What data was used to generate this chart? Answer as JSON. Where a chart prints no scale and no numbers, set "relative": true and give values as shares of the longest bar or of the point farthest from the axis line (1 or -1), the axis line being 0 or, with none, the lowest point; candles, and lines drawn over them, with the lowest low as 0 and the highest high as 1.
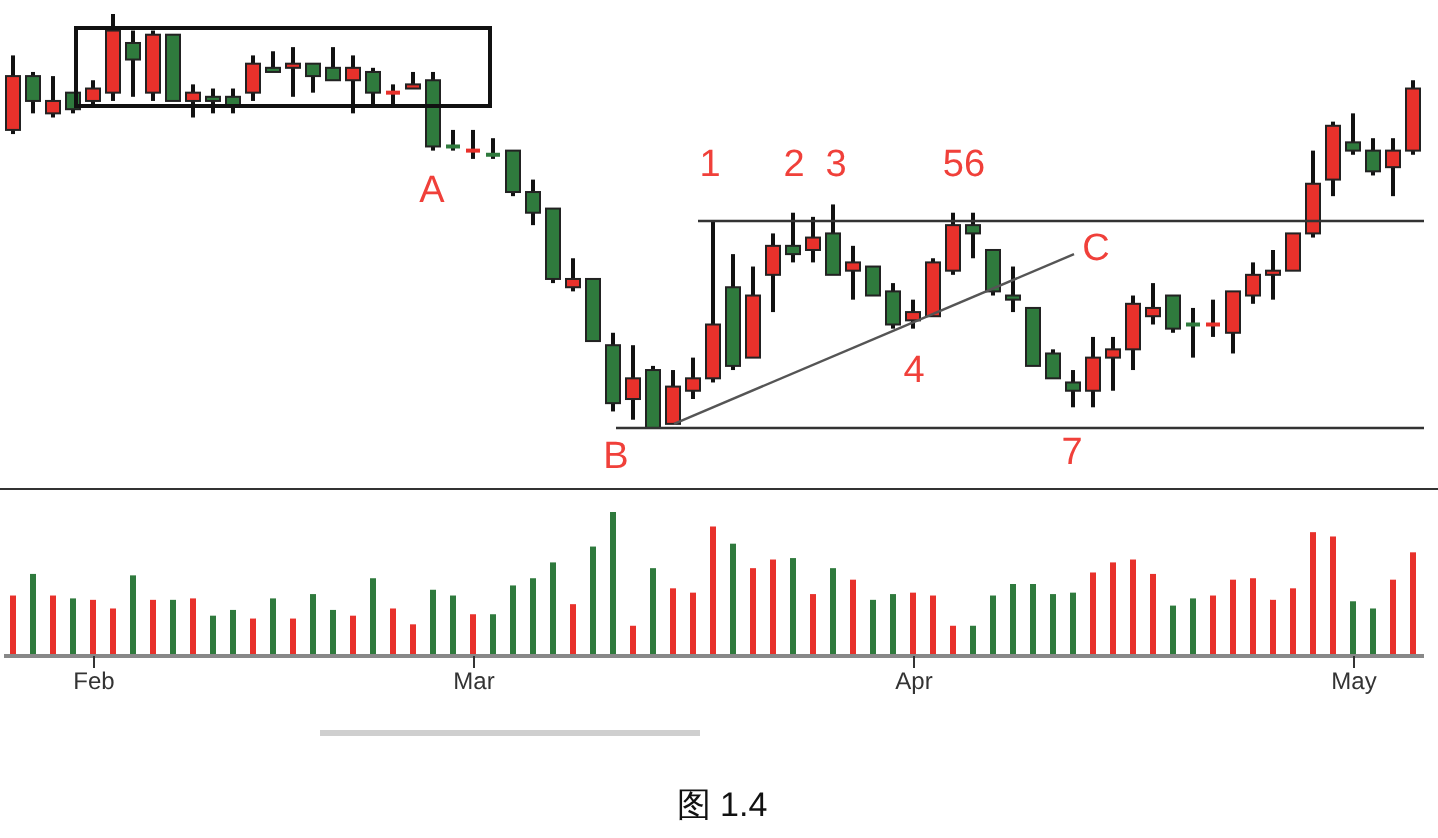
{
  "chart_data": [
    {
      "type": "candlestick",
      "relative": true,
      "categories": [
        null,
        null,
        null,
        null,
        null,
        null,
        null,
        null,
        null,
        null,
        null,
        null,
        null,
        null,
        null,
        null,
        null,
        null,
        null,
        null,
        null,
        null,
        null,
        null,
        null,
        null,
        null,
        null,
        null,
        null,
        null,
        null,
        null,
        null,
        null,
        null,
        null,
        null,
        null,
        null,
        null,
        null,
        null,
        null,
        null,
        null,
        null,
        null,
        null,
        null,
        null,
        null,
        null,
        null,
        null,
        null,
        null,
        null,
        null,
        null,
        null,
        null,
        null,
        null,
        null,
        null,
        null,
        null,
        null,
        null,
        null
      ],
      "ohlc": [
        [
          0.72,
          0.9,
          0.71,
          0.85
        ],
        [
          0.85,
          0.86,
          0.76,
          0.79
        ],
        [
          0.76,
          0.85,
          0.75,
          0.79
        ],
        [
          0.81,
          0.81,
          0.76,
          0.77
        ],
        [
          0.79,
          0.84,
          0.78,
          0.82
        ],
        [
          0.81,
          1.0,
          0.79,
          0.96
        ],
        [
          0.93,
          0.96,
          0.8,
          0.89
        ],
        [
          0.81,
          0.96,
          0.79,
          0.95
        ],
        [
          0.95,
          0.95,
          0.79,
          0.79
        ],
        [
          0.79,
          0.83,
          0.75,
          0.81
        ],
        [
          0.8,
          0.82,
          0.76,
          0.79
        ],
        [
          0.8,
          0.82,
          0.76,
          0.78
        ],
        [
          0.81,
          0.9,
          0.79,
          0.88
        ],
        [
          0.87,
          0.91,
          0.86,
          0.86
        ],
        [
          0.87,
          0.92,
          0.8,
          0.88
        ],
        [
          0.88,
          0.88,
          0.81,
          0.85
        ],
        [
          0.87,
          0.92,
          0.84,
          0.84
        ],
        [
          0.84,
          0.9,
          0.76,
          0.87
        ],
        [
          0.86,
          0.87,
          0.78,
          0.81
        ],
        [
          0.81,
          0.83,
          0.78,
          0.81
        ],
        [
          0.82,
          0.86,
          0.82,
          0.83
        ],
        [
          0.84,
          0.86,
          0.67,
          0.68
        ],
        [
          0.68,
          0.72,
          0.67,
          0.68
        ],
        [
          0.67,
          0.72,
          0.65,
          0.67
        ],
        [
          0.66,
          0.7,
          0.65,
          0.66
        ],
        [
          0.67,
          0.67,
          0.56,
          0.57
        ],
        [
          0.57,
          0.6,
          0.49,
          0.52
        ],
        [
          0.53,
          0.53,
          0.35,
          0.36
        ],
        [
          0.34,
          0.41,
          0.33,
          0.36
        ],
        [
          0.36,
          0.36,
          0.21,
          0.21
        ],
        [
          0.2,
          0.23,
          0.04,
          0.06
        ],
        [
          0.07,
          0.2,
          0.02,
          0.12
        ],
        [
          0.14,
          0.15,
          0,
          0
        ],
        [
          0.01,
          0.14,
          0.01,
          0.1
        ],
        [
          0.09,
          0.17,
          0.07,
          0.12
        ],
        [
          0.12,
          0.5,
          0.11,
          0.25
        ],
        [
          0.34,
          0.42,
          0.14,
          0.15
        ],
        [
          0.17,
          0.39,
          0.17,
          0.32
        ],
        [
          0.37,
          0.47,
          0.28,
          0.44
        ],
        [
          0.44,
          0.52,
          0.4,
          0.42
        ],
        [
          0.43,
          0.51,
          0.4,
          0.46
        ],
        [
          0.47,
          0.54,
          0.37,
          0.37
        ],
        [
          0.38,
          0.44,
          0.31,
          0.4
        ],
        [
          0.39,
          0.39,
          0.32,
          0.32
        ],
        [
          0.33,
          0.35,
          0.24,
          0.25
        ],
        [
          0.26,
          0.31,
          0.24,
          0.28
        ],
        [
          0.27,
          0.41,
          0.27,
          0.4
        ],
        [
          0.38,
          0.52,
          0.37,
          0.49
        ],
        [
          0.49,
          0.52,
          0.41,
          0.47
        ],
        [
          0.43,
          0.43,
          0.32,
          0.33
        ],
        [
          0.32,
          0.39,
          0.28,
          0.31
        ],
        [
          0.29,
          0.29,
          0.15,
          0.15
        ],
        [
          0.18,
          0.19,
          0.12,
          0.12
        ],
        [
          0.11,
          0.14,
          0.05,
          0.09
        ],
        [
          0.09,
          0.22,
          0.05,
          0.17
        ],
        [
          0.17,
          0.22,
          0.09,
          0.19
        ],
        [
          0.19,
          0.32,
          0.14,
          0.3
        ],
        [
          0.27,
          0.35,
          0.25,
          0.29
        ],
        [
          0.32,
          0.32,
          0.23,
          0.24
        ],
        [
          0.25,
          0.29,
          0.17,
          0.25
        ],
        [
          0.25,
          0.31,
          0.22,
          0.25
        ],
        [
          0.23,
          0.33,
          0.18,
          0.33
        ],
        [
          0.32,
          0.4,
          0.3,
          0.37
        ],
        [
          0.37,
          0.43,
          0.31,
          0.38
        ],
        [
          0.38,
          0.47,
          0.38,
          0.47
        ],
        [
          0.47,
          0.67,
          0.46,
          0.59
        ],
        [
          0.6,
          0.74,
          0.56,
          0.73
        ],
        [
          0.69,
          0.76,
          0.66,
          0.67
        ],
        [
          0.67,
          0.7,
          0.61,
          0.62
        ],
        [
          0.63,
          0.7,
          0.56,
          0.67
        ],
        [
          0.67,
          0.84,
          0.66,
          0.82
        ]
      ],
      "colors": [
        "#e8312b",
        "#2f7a3d",
        "#e8312b",
        "#2f7a3d",
        "#e8312b",
        "#e8312b",
        "#2f7a3d",
        "#e8312b",
        "#2f7a3d",
        "#e8312b",
        "#2f7a3d",
        "#2f7a3d",
        "#e8312b",
        "#2f7a3d",
        "#e8312b",
        "#2f7a3d",
        "#2f7a3d",
        "#e8312b",
        "#2f7a3d",
        "#e8312b",
        "#e8312b",
        "#2f7a3d",
        "#2f7a3d",
        "#e8312b",
        "#2f7a3d",
        "#2f7a3d",
        "#2f7a3d",
        "#2f7a3d",
        "#e8312b",
        "#2f7a3d",
        "#2f7a3d",
        "#e8312b",
        "#2f7a3d",
        "#e8312b",
        "#e8312b",
        "#e8312b",
        "#2f7a3d",
        "#e8312b",
        "#e8312b",
        "#2f7a3d",
        "#e8312b",
        "#2f7a3d",
        "#e8312b",
        "#2f7a3d",
        "#2f7a3d",
        "#e8312b",
        "#e8312b",
        "#e8312b",
        "#2f7a3d",
        "#2f7a3d",
        "#2f7a3d",
        "#2f7a3d",
        "#2f7a3d",
        "#2f7a3d",
        "#e8312b",
        "#e8312b",
        "#e8312b",
        "#e8312b",
        "#2f7a3d",
        "#2f7a3d",
        "#e8312b",
        "#e8312b",
        "#e8312b",
        "#e8312b",
        "#e8312b",
        "#e8312b",
        "#e8312b",
        "#2f7a3d",
        "#2f7a3d",
        "#e8312b",
        "#e8312b"
      ],
      "series": [
        {
          "type": "line",
          "color": "#555555",
          "values": [
            null,
            null,
            null,
            null,
            null,
            null,
            null,
            null,
            null,
            null,
            null,
            null,
            null,
            null,
            null,
            null,
            null,
            null,
            null,
            null,
            null,
            null,
            null,
            null,
            null,
            null,
            null,
            null,
            null,
            null,
            null,
            null,
            null,
            0.01,
            null,
            null,
            null,
            null,
            null,
            null,
            null,
            null,
            null,
            null,
            null,
            null,
            null,
            null,
            null,
            null,
            null,
            null,
            null,
            0.42,
            null,
            null,
            null,
            null,
            null,
            null,
            null,
            null,
            null,
            null,
            null,
            null,
            null,
            null,
            null,
            null,
            null
          ]
        }
      ],
      "ref_lines": [
        {
          "axis": "y",
          "value": 0.5,
          "color": "#333333"
        },
        {
          "axis": "y",
          "value": 0,
          "color": "#333333"
        }
      ],
      "annotations": [
        "A",
        "B",
        "1",
        "2",
        "3",
        "56",
        "4",
        "C",
        "7"
      ]
    },
    {
      "type": "bar",
      "relative": true,
      "categories": [
        null,
        null,
        null,
        null,
        "Feb",
        null,
        null,
        null,
        null,
        null,
        null,
        null,
        null,
        null,
        null,
        null,
        null,
        null,
        null,
        null,
        null,
        null,
        null,
        "Mar",
        null,
        null,
        null,
        null,
        null,
        null,
        null,
        null,
        null,
        null,
        null,
        null,
        null,
        null,
        null,
        null,
        null,
        null,
        null,
        null,
        null,
        "Apr",
        null,
        null,
        null,
        null,
        null,
        null,
        null,
        null,
        null,
        null,
        null,
        null,
        null,
        null,
        null,
        null,
        null,
        null,
        null,
        null,
        null,
        "May",
        null,
        null,
        null
      ],
      "values": [
        0.42,
        0.57,
        0.42,
        0.4,
        0.39,
        0.33,
        0.56,
        0.39,
        0.39,
        0.4,
        0.28,
        0.32,
        0.26,
        0.4,
        0.26,
        0.43,
        0.32,
        0.28,
        0.54,
        0.33,
        0.22,
        0.46,
        0.42,
        0.29,
        0.29,
        0.49,
        0.54,
        0.65,
        0.36,
        0.76,
        1,
        0.21,
        0.61,
        0.47,
        0.44,
        0.9,
        0.78,
        0.61,
        0.67,
        0.68,
        0.43,
        0.61,
        0.53,
        0.39,
        0.43,
        0.44,
        0.42,
        0.21,
        0.21,
        0.42,
        0.5,
        0.5,
        0.43,
        0.44,
        0.58,
        0.65,
        0.67,
        0.57,
        0.35,
        0.4,
        0.42,
        0.53,
        0.54,
        0.39,
        0.47,
        0.86,
        0.83,
        0.38,
        0.33,
        0.53,
        0.72
      ],
      "colors": [
        "#e8312b",
        "#2f7a3d",
        "#e8312b",
        "#2f7a3d",
        "#e8312b",
        "#e8312b",
        "#2f7a3d",
        "#e8312b",
        "#2f7a3d",
        "#e8312b",
        "#2f7a3d",
        "#2f7a3d",
        "#e8312b",
        "#2f7a3d",
        "#e8312b",
        "#2f7a3d",
        "#2f7a3d",
        "#e8312b",
        "#2f7a3d",
        "#e8312b",
        "#e8312b",
        "#2f7a3d",
        "#2f7a3d",
        "#e8312b",
        "#2f7a3d",
        "#2f7a3d",
        "#2f7a3d",
        "#2f7a3d",
        "#e8312b",
        "#2f7a3d",
        "#2f7a3d",
        "#e8312b",
        "#2f7a3d",
        "#e8312b",
        "#e8312b",
        "#e8312b",
        "#2f7a3d",
        "#e8312b",
        "#e8312b",
        "#2f7a3d",
        "#e8312b",
        "#2f7a3d",
        "#e8312b",
        "#2f7a3d",
        "#2f7a3d",
        "#e8312b",
        "#e8312b",
        "#e8312b",
        "#2f7a3d",
        "#2f7a3d",
        "#2f7a3d",
        "#2f7a3d",
        "#2f7a3d",
        "#2f7a3d",
        "#e8312b",
        "#e8312b",
        "#e8312b",
        "#e8312b",
        "#2f7a3d",
        "#2f7a3d",
        "#e8312b",
        "#e8312b",
        "#e8312b",
        "#e8312b",
        "#e8312b",
        "#e8312b",
        "#e8312b",
        "#2f7a3d",
        "#2f7a3d",
        "#e8312b",
        "#e8312b"
      ],
      "annotations": [
        "图 1.4"
      ]
    }
  ]
}
